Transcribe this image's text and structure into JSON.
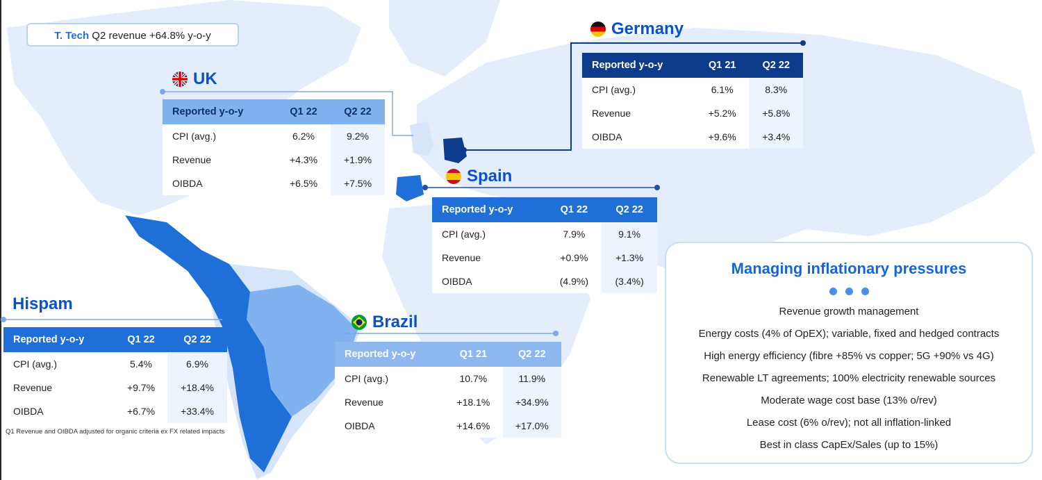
{
  "headline": {
    "brand": "T. Tech",
    "text": " Q2 revenue +64.8% y-o-y"
  },
  "regions": {
    "germany": {
      "name": "Germany",
      "headers": [
        "Reported y-o-y",
        "Q1 21",
        "Q2 22"
      ],
      "rows": [
        [
          "CPI (avg.)",
          "6.1%",
          "8.3%"
        ],
        [
          "Revenue",
          "+5.2%",
          "+5.8%"
        ],
        [
          "OIBDA",
          "+9.6%",
          "+3.4%"
        ]
      ]
    },
    "uk": {
      "name": "UK",
      "headers": [
        "Reported y-o-y",
        "Q1 22",
        "Q2 22"
      ],
      "rows": [
        [
          "CPI (avg.)",
          "6.2%",
          "9.2%"
        ],
        [
          "Revenue",
          "+4.3%",
          "+1.9%"
        ],
        [
          "OIBDA",
          "+6.5%",
          "+7.5%"
        ]
      ]
    },
    "spain": {
      "name": "Spain",
      "headers": [
        "Reported y-o-y",
        "Q1 22",
        "Q2 22"
      ],
      "rows": [
        [
          "CPI (avg.)",
          "7.9%",
          "9.1%"
        ],
        [
          "Revenue",
          "+0.9%",
          "+1.3%"
        ],
        [
          "OIBDA",
          "(4.9%)",
          "(3.4%)"
        ]
      ]
    },
    "hispam": {
      "name": "Hispam",
      "headers": [
        "Reported y-o-y",
        "Q1 22",
        "Q2 22"
      ],
      "rows": [
        [
          "CPI (avg.)",
          "5.4%",
          "6.9%"
        ],
        [
          "Revenue",
          "+9.7%",
          "+18.4%"
        ],
        [
          "OIBDA",
          "+6.7%",
          "+33.4%"
        ]
      ]
    },
    "brazil": {
      "name": "Brazil",
      "headers": [
        "Reported y-o-y",
        "Q1 21",
        "Q2 22"
      ],
      "rows": [
        [
          "CPI (avg.)",
          "10.7%",
          "11.9%"
        ],
        [
          "Revenue",
          "+18.1%",
          "+34.9%"
        ],
        [
          "OIBDA",
          "+14.6%",
          "+17.0%"
        ]
      ]
    }
  },
  "footnote": "Q1 Revenue and OIBDA adjusted for organic criteria ex FX related impacts",
  "panel": {
    "title": "Managing inflationary pressures",
    "items": [
      "Revenue growth management",
      "Energy costs (4% of OpEX); variable, fixed and hedged contracts",
      "High energy efficiency (fibre +85% vs copper; 5G +90% vs 4G)",
      "Renewable LT agreements; 100% electricity renewable sources",
      "Moderate wage cost base (13% o/rev)",
      "Lease cost (6% o/rev); not all inflation-linked",
      "Best in class CapEx/Sales (up to 15%)"
    ]
  },
  "colors": {
    "accent": "#0a52c7",
    "dark_header": "#0d3b8c",
    "mid_header": "#1f6fd8",
    "light_header": "#8cb8ef",
    "map_land": "#e4edfb",
    "map_highlight": "#1f6fd8"
  }
}
